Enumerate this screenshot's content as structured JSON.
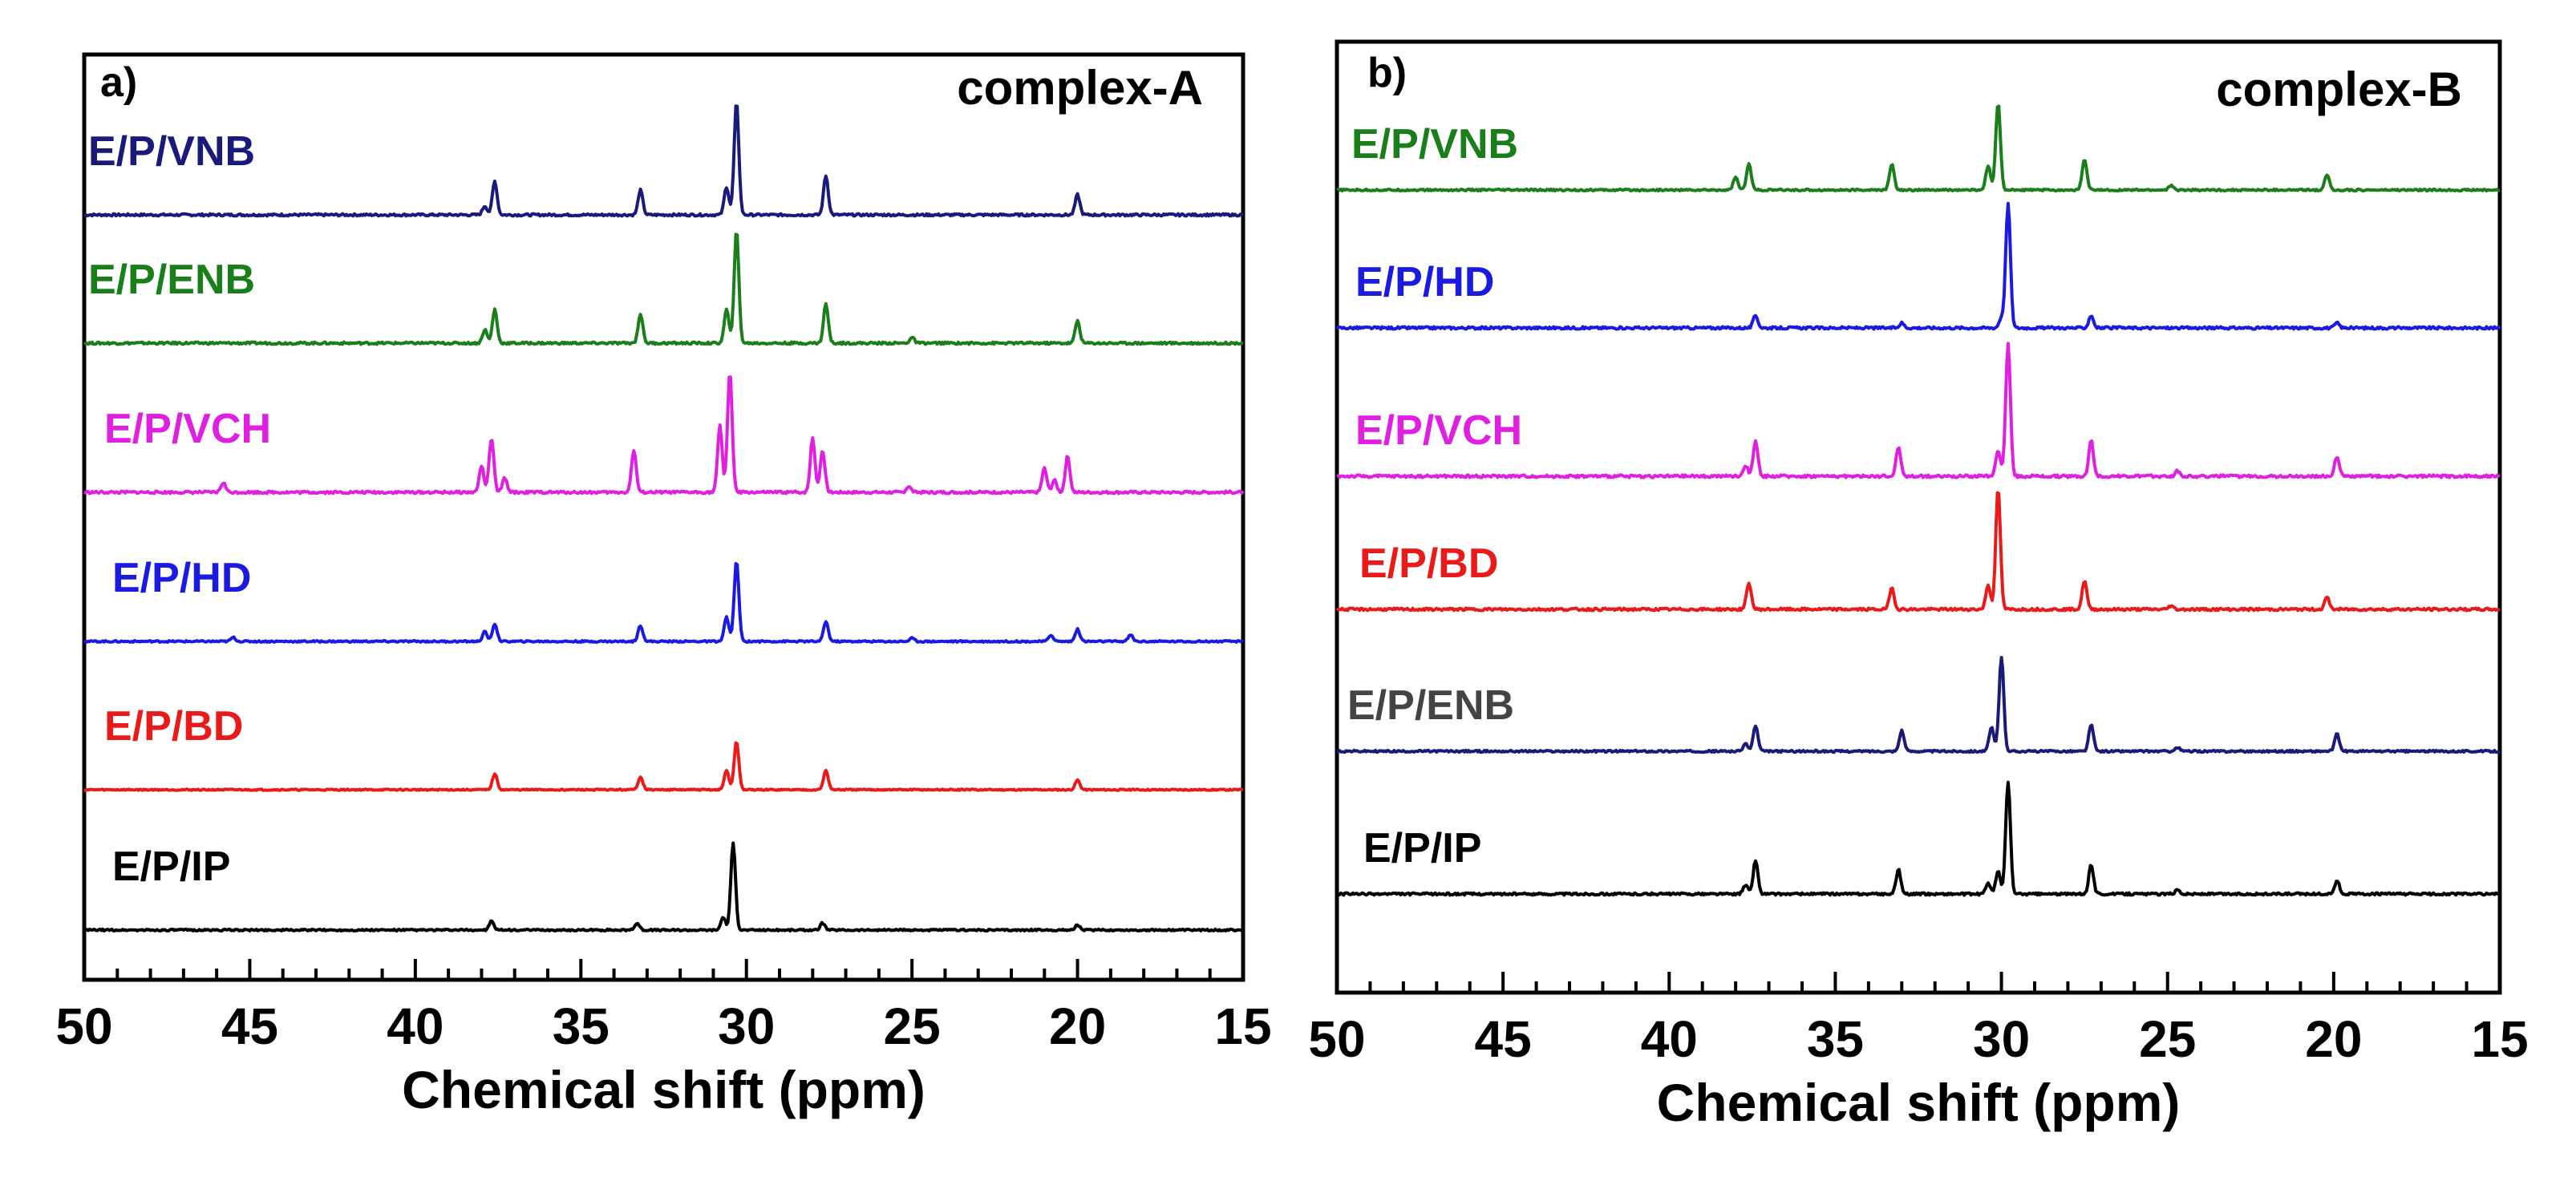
{
  "chart_data": [
    {
      "type": "line",
      "panel": "a)",
      "title": "complex-A",
      "xlabel": "Chemical shift (ppm)",
      "ylabel": "",
      "xlim": [
        50,
        15
      ],
      "x_reversed": true,
      "xticks": [
        "50",
        "45",
        "40",
        "35",
        "30",
        "25",
        "20",
        "15"
      ],
      "xtick_values": [
        50,
        45,
        40,
        35,
        30,
        25,
        20,
        15
      ],
      "y_visible": false,
      "series": [
        {
          "name": "E/P/VNB",
          "color": "#1a1a7a",
          "peaks": [
            [
              37.9,
              0.08
            ],
            [
              37.6,
              0.3
            ],
            [
              33.2,
              0.22
            ],
            [
              30.6,
              0.25
            ],
            [
              30.3,
              1.0
            ],
            [
              27.6,
              0.35
            ],
            [
              20.0,
              0.18
            ]
          ]
        },
        {
          "name": "E/P/ENB",
          "color": "#1a7f1a",
          "peaks": [
            [
              37.9,
              0.12
            ],
            [
              37.6,
              0.3
            ],
            [
              33.2,
              0.26
            ],
            [
              30.6,
              0.3
            ],
            [
              30.3,
              1.0
            ],
            [
              27.6,
              0.35
            ],
            [
              25.0,
              0.05
            ],
            [
              20.0,
              0.2
            ]
          ]
        },
        {
          "name": "E/P/VCH",
          "color": "#e020e0",
          "peaks": [
            [
              45.8,
              0.08
            ],
            [
              38.0,
              0.22
            ],
            [
              37.7,
              0.45
            ],
            [
              37.3,
              0.12
            ],
            [
              33.4,
              0.35
            ],
            [
              30.8,
              0.55
            ],
            [
              30.5,
              1.0
            ],
            [
              28.0,
              0.45
            ],
            [
              27.7,
              0.35
            ],
            [
              25.1,
              0.05
            ],
            [
              21.0,
              0.2
            ],
            [
              20.7,
              0.1
            ],
            [
              20.3,
              0.3
            ]
          ]
        },
        {
          "name": "E/P/HD",
          "color": "#1a1ae0",
          "peaks": [
            [
              45.5,
              0.05
            ],
            [
              37.9,
              0.12
            ],
            [
              37.6,
              0.22
            ],
            [
              33.2,
              0.2
            ],
            [
              30.6,
              0.3
            ],
            [
              30.3,
              1.0
            ],
            [
              27.6,
              0.25
            ],
            [
              25.0,
              0.04
            ],
            [
              20.8,
              0.08
            ],
            [
              20.0,
              0.15
            ],
            [
              18.4,
              0.08
            ]
          ]
        },
        {
          "name": "E/P/BD",
          "color": "#e81a1a",
          "peaks": [
            [
              37.6,
              0.25
            ],
            [
              33.2,
              0.2
            ],
            [
              30.6,
              0.3
            ],
            [
              30.3,
              0.75
            ],
            [
              27.6,
              0.3
            ],
            [
              20.0,
              0.15
            ]
          ]
        },
        {
          "name": "E/P/IP",
          "color": "#000000",
          "peaks": [
            [
              37.7,
              0.1
            ],
            [
              33.3,
              0.08
            ],
            [
              30.7,
              0.15
            ],
            [
              30.4,
              1.0
            ],
            [
              27.7,
              0.08
            ],
            [
              20.0,
              0.06
            ]
          ]
        }
      ]
    },
    {
      "type": "line",
      "panel": "b)",
      "title": "complex-B",
      "xlabel": "Chemical shift (ppm)",
      "ylabel": "",
      "xlim": [
        50,
        15
      ],
      "x_reversed": true,
      "xticks": [
        "50",
        "45",
        "40",
        "35",
        "30",
        "25",
        "20",
        "15"
      ],
      "xtick_values": [
        50,
        45,
        40,
        35,
        30,
        25,
        20,
        15
      ],
      "y_visible": false,
      "series": [
        {
          "name": "E/P/VNB",
          "color": "#1a7f1a",
          "peaks": [
            [
              38.0,
              0.15
            ],
            [
              37.6,
              0.3
            ],
            [
              33.3,
              0.3
            ],
            [
              30.4,
              0.28
            ],
            [
              30.1,
              1.0
            ],
            [
              27.5,
              0.35
            ],
            [
              24.9,
              0.05
            ],
            [
              20.2,
              0.18
            ]
          ]
        },
        {
          "name": "E/P/HD",
          "color": "#1a1ae0",
          "peaks": [
            [
              37.4,
              0.1
            ],
            [
              33.0,
              0.04
            ],
            [
              30.0,
              0.08
            ],
            [
              29.8,
              1.0
            ],
            [
              27.3,
              0.1
            ],
            [
              19.9,
              0.04
            ]
          ]
        },
        {
          "name": "E/P/VCH",
          "color": "#e020e0",
          "peaks": [
            [
              37.7,
              0.08
            ],
            [
              37.4,
              0.27
            ],
            [
              33.1,
              0.22
            ],
            [
              30.1,
              0.2
            ],
            [
              29.8,
              1.0
            ],
            [
              27.3,
              0.27
            ],
            [
              24.7,
              0.04
            ],
            [
              19.9,
              0.15
            ]
          ]
        },
        {
          "name": "E/P/BD",
          "color": "#e81a1a",
          "peaks": [
            [
              37.6,
              0.22
            ],
            [
              33.3,
              0.18
            ],
            [
              30.4,
              0.2
            ],
            [
              30.1,
              1.0
            ],
            [
              27.5,
              0.24
            ],
            [
              24.9,
              0.03
            ],
            [
              20.2,
              0.1
            ]
          ]
        },
        {
          "name": "E/P/ENB",
          "color": "#1a1a7a",
          "peaks": [
            [
              37.7,
              0.08
            ],
            [
              37.4,
              0.27
            ],
            [
              33.0,
              0.22
            ],
            [
              30.3,
              0.25
            ],
            [
              30.0,
              1.0
            ],
            [
              27.3,
              0.28
            ],
            [
              24.7,
              0.04
            ],
            [
              19.9,
              0.18
            ]
          ]
        },
        {
          "name": "E/P/IP",
          "color": "#000000",
          "peaks": [
            [
              37.7,
              0.08
            ],
            [
              37.4,
              0.3
            ],
            [
              33.1,
              0.22
            ],
            [
              30.4,
              0.1
            ],
            [
              30.1,
              0.2
            ],
            [
              29.8,
              1.0
            ],
            [
              27.3,
              0.26
            ],
            [
              24.7,
              0.04
            ],
            [
              19.9,
              0.12
            ]
          ]
        }
      ]
    }
  ],
  "series_label_colors": {
    "a": [
      "#1a1a7a",
      "#1a7f1a",
      "#e020e0",
      "#1a1ae0",
      "#e81a1a",
      "#000000"
    ],
    "b": [
      "#1a7f1a",
      "#1a1ae0",
      "#e020e0",
      "#e81a1a",
      "#444444",
      "#000000"
    ]
  }
}
